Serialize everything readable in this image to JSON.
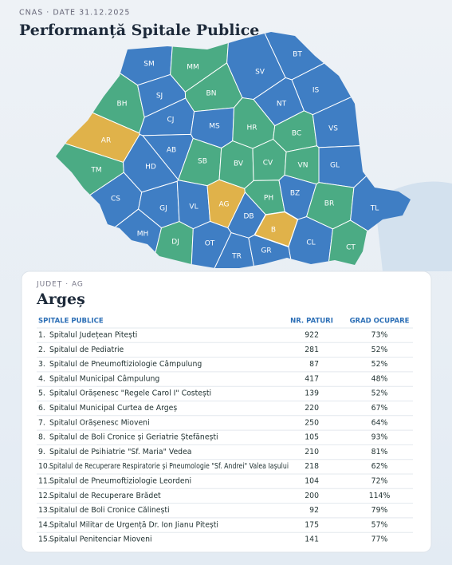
{
  "header": {
    "source": "CNAS · DATE 31.12.2025",
    "title": "Performanță Spitale Publice"
  },
  "map": {
    "counties": [
      {
        "code": "SM",
        "color": "#3f7ec4"
      },
      {
        "code": "MM",
        "color": "#4bab84"
      },
      {
        "code": "BT",
        "color": "#3f7ec4"
      },
      {
        "code": "SV",
        "color": "#3f7ec4"
      },
      {
        "code": "BH",
        "color": "#4bab84"
      },
      {
        "code": "SJ",
        "color": "#3f7ec4"
      },
      {
        "code": "BN",
        "color": "#4bab84"
      },
      {
        "code": "IS",
        "color": "#3f7ec4"
      },
      {
        "code": "NT",
        "color": "#3f7ec4"
      },
      {
        "code": "CJ",
        "color": "#3f7ec4"
      },
      {
        "code": "MS",
        "color": "#3f7ec4"
      },
      {
        "code": "HR",
        "color": "#4bab84"
      },
      {
        "code": "BC",
        "color": "#4bab84"
      },
      {
        "code": "VS",
        "color": "#3f7ec4"
      },
      {
        "code": "AR",
        "color": "#e0b24a"
      },
      {
        "code": "AB",
        "color": "#3f7ec4"
      },
      {
        "code": "SB",
        "color": "#4bab84"
      },
      {
        "code": "BV",
        "color": "#4bab84"
      },
      {
        "code": "CV",
        "color": "#4bab84"
      },
      {
        "code": "VN",
        "color": "#4bab84"
      },
      {
        "code": "GL",
        "color": "#3f7ec4"
      },
      {
        "code": "TM",
        "color": "#4bab84"
      },
      {
        "code": "HD",
        "color": "#3f7ec4"
      },
      {
        "code": "CS",
        "color": "#3f7ec4"
      },
      {
        "code": "GJ",
        "color": "#3f7ec4"
      },
      {
        "code": "VL",
        "color": "#3f7ec4"
      },
      {
        "code": "AG",
        "color": "#e0b24a"
      },
      {
        "code": "PH",
        "color": "#4bab84"
      },
      {
        "code": "BZ",
        "color": "#3f7ec4"
      },
      {
        "code": "BR",
        "color": "#4bab84"
      },
      {
        "code": "TL",
        "color": "#3f7ec4"
      },
      {
        "code": "DB",
        "color": "#3f7ec4"
      },
      {
        "code": "MH",
        "color": "#3f7ec4"
      },
      {
        "code": "DJ",
        "color": "#4bab84"
      },
      {
        "code": "OT",
        "color": "#3f7ec4"
      },
      {
        "code": "TR",
        "color": "#3f7ec4"
      },
      {
        "code": "GR",
        "color": "#3f7ec4"
      },
      {
        "code": "B",
        "color": "#e0b24a"
      },
      {
        "code": "CL",
        "color": "#3f7ec4"
      },
      {
        "code": "CT",
        "color": "#4bab84"
      }
    ]
  },
  "panel": {
    "kicker": "JUDEȚ · AG",
    "title": "Argeș",
    "columns": [
      "SPITALE PUBLICE",
      "NR. PATURI",
      "GRAD OCUPARE"
    ],
    "rows": [
      {
        "rank": "1.",
        "name": "Spitalul Județean Pitești",
        "beds": 922,
        "occupancy": "73%",
        "color": "#e08a1e"
      },
      {
        "rank": "2.",
        "name": "Spitalul de Pediatrie",
        "beds": 281,
        "occupancy": "52%",
        "color": "#d94040"
      },
      {
        "rank": "3.",
        "name": "Spitalul de Pneumoftiziologie Câmpulung",
        "beds": 87,
        "occupancy": "52%",
        "color": "#d94040"
      },
      {
        "rank": "4.",
        "name": "Spitalul Municipal Câmpulung",
        "beds": 417,
        "occupancy": "48%",
        "color": "#d94040"
      },
      {
        "rank": "5.",
        "name": "Spitalul Orășenesc \"Regele Carol I\" Costești",
        "beds": 139,
        "occupancy": "52%",
        "color": "#d94040"
      },
      {
        "rank": "6.",
        "name": "Spitalul Municipal Curtea de Argeș",
        "beds": 220,
        "occupancy": "67%",
        "color": "#e08a1e"
      },
      {
        "rank": "7.",
        "name": "Spitalul Orășenesc Mioveni",
        "beds": 250,
        "occupancy": "64%",
        "color": "#e08a1e"
      },
      {
        "rank": "8.",
        "name": "Spitalul de Boli Cronice și Geriatrie Ștefănești",
        "beds": 105,
        "occupancy": "93%",
        "color": "#2e9e5b"
      },
      {
        "rank": "9.",
        "name": "Spitalul de Psihiatrie \"Sf. Maria\" Vedea",
        "beds": 210,
        "occupancy": "81%",
        "color": "#2e9e5b"
      },
      {
        "rank": "10.",
        "name": "Spitalul de Recuperare Respiratorie și Pneumologie \"Sf. Andrei\" Valea Iașului",
        "beds": 218,
        "occupancy": "62%",
        "color": "#d94040"
      },
      {
        "rank": "11.",
        "name": "Spitalul de Pneumoftiziologie Leordeni",
        "beds": 104,
        "occupancy": "72%",
        "color": "#e08a1e"
      },
      {
        "rank": "12.",
        "name": "Spitalul de Recuperare Brădet",
        "beds": 200,
        "occupancy": "114%",
        "color": "#2e9e5b"
      },
      {
        "rank": "13.",
        "name": "Spitalul de Boli Cronice Călinești",
        "beds": 92,
        "occupancy": "79%",
        "color": "#e08a1e"
      },
      {
        "rank": "14.",
        "name": "Spitalul Militar de Urgență Dr. Ion Jianu Pitești",
        "beds": 175,
        "occupancy": "57%",
        "color": "#d94040"
      },
      {
        "rank": "15.",
        "name": "Spitalul Penitenciar Mioveni",
        "beds": 141,
        "occupancy": "77%",
        "color": "#e08a1e"
      }
    ]
  }
}
